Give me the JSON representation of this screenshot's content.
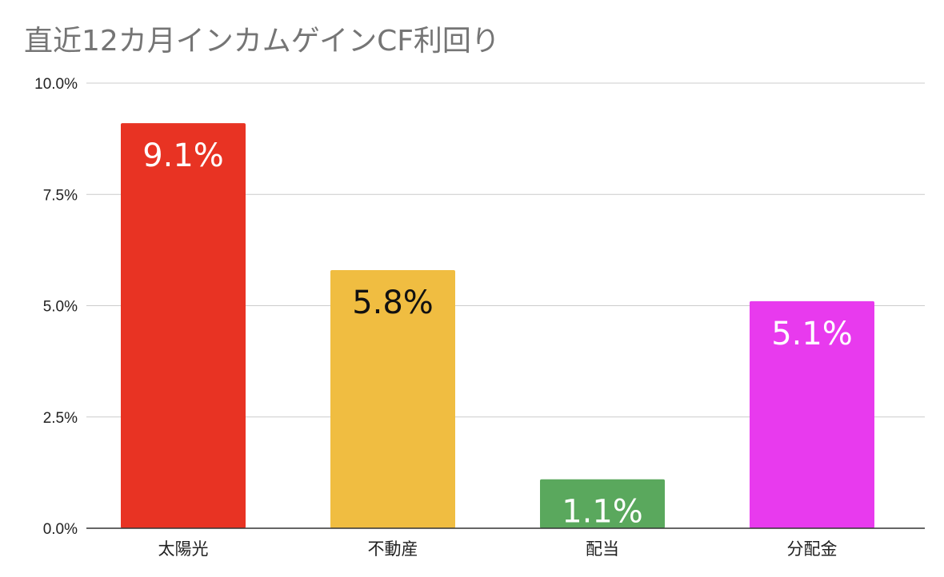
{
  "chart_data": {
    "type": "bar",
    "title": "直近12カ月インカムゲインCF利回り",
    "xlabel": "",
    "ylabel": "",
    "categories": [
      "太陽光",
      "不動産",
      "配当",
      "分配金"
    ],
    "values": [
      9.1,
      5.8,
      1.1,
      5.1
    ],
    "data_labels": [
      "9.1%",
      "5.8%",
      "1.1%",
      "5.1%"
    ],
    "bar_colors": [
      "#e83323",
      "#f0bd41",
      "#5aa85d",
      "#e83aee"
    ],
    "label_colors": [
      "#ffffff",
      "#111111",
      "#ffffff",
      "#ffffff"
    ],
    "ylim": [
      0,
      10
    ],
    "yticks": [
      0,
      2.5,
      5,
      7.5,
      10
    ],
    "ytick_labels": [
      "0.0%",
      "2.5%",
      "5.0%",
      "7.5%",
      "10.0%"
    ],
    "grid": true,
    "legend": "none"
  }
}
